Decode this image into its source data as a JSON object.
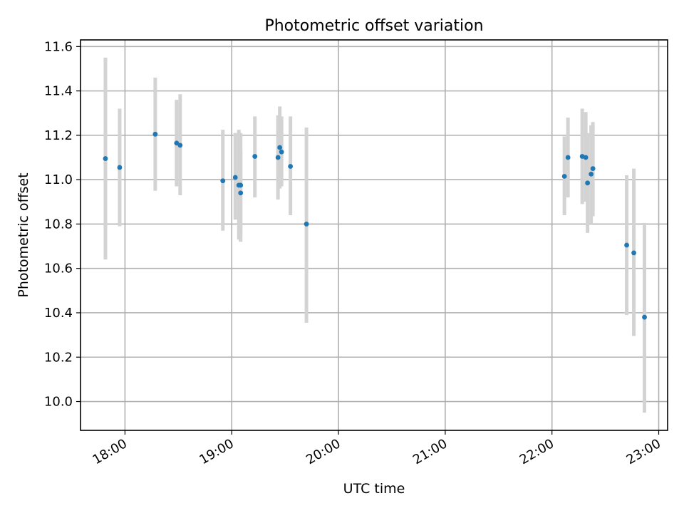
{
  "chart_data": {
    "type": "scatter",
    "title": "Photometric offset variation",
    "xlabel": "UTC time",
    "ylabel": "Photometric offset",
    "x_axis": "time",
    "xlim": [
      "17:35",
      "23:05"
    ],
    "ylim": [
      9.87,
      11.63
    ],
    "x_ticks": [
      "18:00",
      "19:00",
      "20:00",
      "21:00",
      "22:00",
      "23:00"
    ],
    "y_ticks": [
      10.0,
      10.2,
      10.4,
      10.6,
      10.8,
      11.0,
      11.2,
      11.4,
      11.6
    ],
    "y_tick_labels": [
      "10.0",
      "10.2",
      "10.4",
      "10.6",
      "10.8",
      "11.0",
      "11.2",
      "11.4",
      "11.6"
    ],
    "grid": true,
    "marker_color": "#1f77b4",
    "errorbar_color": "#d3d3d3",
    "points": [
      {
        "x": "17:49",
        "y": 11.095,
        "lo": 10.64,
        "hi": 11.55
      },
      {
        "x": "17:57",
        "y": 11.055,
        "lo": 10.79,
        "hi": 11.32
      },
      {
        "x": "18:17",
        "y": 11.205,
        "lo": 10.95,
        "hi": 11.46
      },
      {
        "x": "18:29",
        "y": 11.165,
        "lo": 10.97,
        "hi": 11.36
      },
      {
        "x": "18:31",
        "y": 11.155,
        "lo": 10.93,
        "hi": 11.385
      },
      {
        "x": "18:55",
        "y": 10.995,
        "lo": 10.77,
        "hi": 11.225
      },
      {
        "x": "19:02",
        "y": 11.01,
        "lo": 10.82,
        "hi": 11.21
      },
      {
        "x": "19:04",
        "y": 10.975,
        "lo": 10.73,
        "hi": 11.225
      },
      {
        "x": "19:05",
        "y": 10.975,
        "lo": 10.72,
        "hi": 11.21
      },
      {
        "x": "19:05",
        "y": 10.94,
        "lo": 10.75,
        "hi": 11.13
      },
      {
        "x": "19:13",
        "y": 11.105,
        "lo": 10.92,
        "hi": 11.285
      },
      {
        "x": "19:26",
        "y": 11.1,
        "lo": 10.91,
        "hi": 11.29
      },
      {
        "x": "19:27",
        "y": 11.145,
        "lo": 10.96,
        "hi": 11.33
      },
      {
        "x": "19:28",
        "y": 11.125,
        "lo": 10.97,
        "hi": 11.285
      },
      {
        "x": "19:33",
        "y": 11.06,
        "lo": 10.84,
        "hi": 11.285
      },
      {
        "x": "19:42",
        "y": 10.8,
        "lo": 10.355,
        "hi": 11.235
      },
      {
        "x": "22:07",
        "y": 11.015,
        "lo": 10.84,
        "hi": 11.195
      },
      {
        "x": "22:09",
        "y": 11.1,
        "lo": 10.92,
        "hi": 11.28
      },
      {
        "x": "22:17",
        "y": 11.105,
        "lo": 10.89,
        "hi": 11.32
      },
      {
        "x": "22:19",
        "y": 11.1,
        "lo": 10.9,
        "hi": 11.305
      },
      {
        "x": "22:20",
        "y": 10.985,
        "lo": 10.76,
        "hi": 11.21
      },
      {
        "x": "22:22",
        "y": 11.025,
        "lo": 10.8,
        "hi": 11.245
      },
      {
        "x": "22:23",
        "y": 11.05,
        "lo": 10.835,
        "hi": 11.26
      },
      {
        "x": "22:42",
        "y": 10.705,
        "lo": 10.39,
        "hi": 11.02
      },
      {
        "x": "22:46",
        "y": 10.67,
        "lo": 10.295,
        "hi": 11.05
      },
      {
        "x": "22:52",
        "y": 10.38,
        "lo": 9.95,
        "hi": 10.805
      }
    ]
  }
}
